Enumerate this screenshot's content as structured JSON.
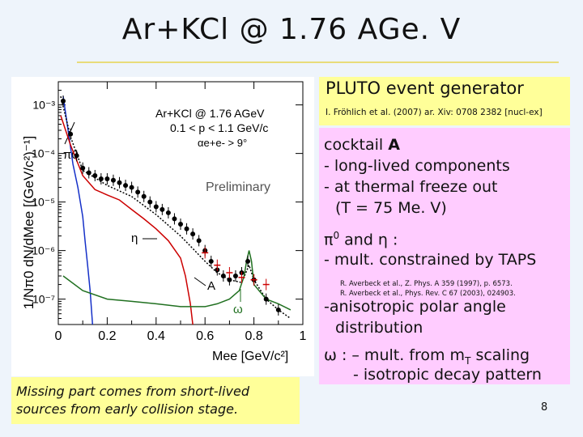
{
  "slide": {
    "title": "Ar+KCl @ 1.76 AGe. V",
    "page_number": "8"
  },
  "pluto": {
    "title": "PLUTO event generator",
    "reference": "I. Fröhlich et al. (2007) ar. Xiv: 0708 2382 [nucl-ex]"
  },
  "info": {
    "cocktail_heading_pre": "cocktail ",
    "cocktail_heading_bold": "A",
    "long_lived": "- long-lived components",
    "freeze_out": "- at thermal freeze out",
    "temperature": "(T = 75 Me. V)",
    "pi_eta_pre": "π",
    "pi_eta_sup": "0",
    "pi_eta_post": " and η :",
    "mult_taps": "- mult. constrained by TAPS",
    "ref1": "R. Averbeck et al., Z. Phys. A 359 (1997), p. 6573.",
    "ref2": "R. Averbeck et al., Phys. Rev. C 67 (2003), 024903.",
    "anisotropic": "-anisotropic polar angle",
    "distribution": "distribution",
    "omega_line1": "ω :  – mult. from m",
    "omega_sub": "T",
    "omega_line1_post": " scaling",
    "omega_line2": "- isotropic decay pattern"
  },
  "note": {
    "line1": "Missing part comes from short-lived",
    "line2": "sources from early collision stage."
  },
  "chart_data": {
    "type": "scatter",
    "title": "Ar+KCl @ 1.76 AGeV",
    "subtitle": "0.1 < p < 1.1 GeV/c",
    "cut_label": "αe+e- > 9°",
    "xlabel": "Mee [GeV/c²]",
    "ylabel": "1/Nπ0 dN/dMee [(GeV/c²)⁻¹]",
    "xlim": [
      0,
      1.0
    ],
    "ylim": [
      3e-08,
      0.003
    ],
    "yscale": "log",
    "xticks": [
      "0",
      "0.2",
      "0.4",
      "0.6",
      "0.8",
      "1"
    ],
    "yticks": [
      "10⁻³",
      "10⁻⁴",
      "10⁻⁵",
      "10⁻⁶",
      "10⁻⁷"
    ],
    "annotations": [
      "Preliminary",
      "π0",
      "η",
      "A",
      "ω"
    ],
    "series": [
      {
        "kind": "data",
        "color": "#000000",
        "x": [
          0.02,
          0.05,
          0.075,
          0.1,
          0.125,
          0.15,
          0.175,
          0.2,
          0.225,
          0.25,
          0.275,
          0.3,
          0.325,
          0.35,
          0.375,
          0.4,
          0.425,
          0.45,
          0.475,
          0.5,
          0.525,
          0.55,
          0.575,
          0.6,
          0.625,
          0.65,
          0.675,
          0.7,
          0.725,
          0.75,
          0.775,
          0.8,
          0.85,
          0.9
        ],
        "y": [
          0.0012,
          0.00025,
          9e-05,
          5e-05,
          4e-05,
          3.5e-05,
          3e-05,
          3e-05,
          2.8e-05,
          2.5e-05,
          2.2e-05,
          2e-05,
          1.6e-05,
          1.3e-05,
          1e-05,
          8e-06,
          7e-06,
          6e-06,
          4.5e-06,
          3.5e-06,
          2.8e-06,
          2.2e-06,
          1.6e-06,
          1e-06,
          6e-07,
          4e-07,
          3e-07,
          2.5e-07,
          3e-07,
          3.5e-07,
          6e-07,
          2.5e-07,
          1e-07,
          6e-08
        ]
      },
      {
        "kind": "sim",
        "color": "#cc0000",
        "x": [
          0.6,
          0.65,
          0.7,
          0.75,
          0.8,
          0.85
        ],
        "y": [
          9e-07,
          5e-07,
          3.5e-07,
          2.8e-07,
          2.5e-07,
          2e-07
        ]
      },
      {
        "kind": "line",
        "name": "π0",
        "color": "#1530c8",
        "x": [
          0.02,
          0.04,
          0.06,
          0.08,
          0.1,
          0.11,
          0.12,
          0.13,
          0.14
        ],
        "y": [
          0.0015,
          0.0003,
          6e-05,
          2e-05,
          5e-06,
          1.5e-06,
          5e-07,
          1.5e-07,
          3e-08
        ]
      },
      {
        "kind": "line",
        "name": "η",
        "color": "#cc0000",
        "x": [
          0.01,
          0.05,
          0.1,
          0.15,
          0.2,
          0.25,
          0.3,
          0.35,
          0.4,
          0.45,
          0.5,
          0.52,
          0.54,
          0.55
        ],
        "y": [
          0.0006,
          0.00015,
          3.5e-05,
          1.8e-05,
          1.4e-05,
          1.1e-05,
          7e-06,
          4.5e-06,
          2.8e-06,
          1.6e-06,
          7e-07,
          3e-07,
          8e-08,
          3e-08
        ]
      },
      {
        "kind": "line",
        "name": "A",
        "color": "#000000",
        "x": [
          0.01,
          0.05,
          0.1,
          0.2,
          0.3,
          0.4,
          0.5,
          0.55,
          0.6,
          0.65,
          0.7,
          0.75,
          0.78,
          0.8,
          0.85,
          0.9,
          0.95
        ],
        "y": [
          0.0015,
          0.00022,
          4.5e-05,
          2.2e-05,
          1.3e-05,
          5.5e-06,
          2e-06,
          1.1e-06,
          6e-07,
          3.5e-07,
          2.5e-07,
          2.2e-07,
          5e-07,
          2.5e-07,
          1e-07,
          6e-08,
          4e-08
        ]
      },
      {
        "kind": "line",
        "name": "ω",
        "color": "#207020",
        "x": [
          0.02,
          0.1,
          0.2,
          0.3,
          0.4,
          0.5,
          0.6,
          0.65,
          0.7,
          0.74,
          0.76,
          0.77,
          0.78,
          0.79,
          0.8,
          0.85,
          0.9,
          0.95
        ],
        "y": [
          3e-07,
          1.5e-07,
          1e-07,
          9e-08,
          8e-08,
          7e-08,
          7e-08,
          8e-08,
          1e-07,
          1.5e-07,
          3e-07,
          6e-07,
          1e-06,
          6e-07,
          2e-07,
          1e-07,
          8e-08,
          6e-08
        ]
      }
    ]
  }
}
